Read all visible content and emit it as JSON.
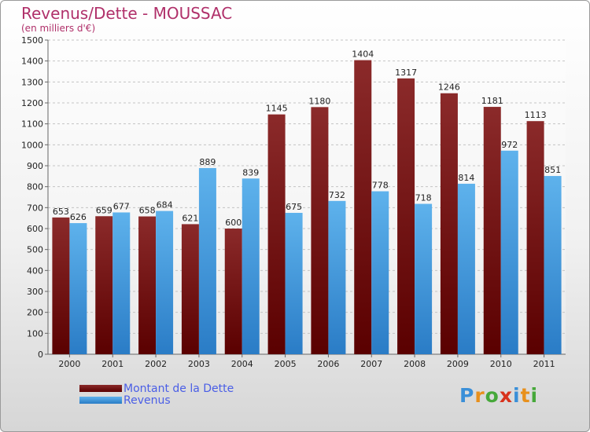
{
  "title": "Revenus/Dette - MOUSSAC",
  "subtitle": "(en milliers d'€)",
  "logo": {
    "text": "Proxiti",
    "letter_colors": [
      "#3a8fd8",
      "#e8901c",
      "#46a83a",
      "#d8321c",
      "#3a8fd8",
      "#e8901c",
      "#46a83a"
    ]
  },
  "chart_data": {
    "type": "bar",
    "categories": [
      "2000",
      "2001",
      "2002",
      "2003",
      "2004",
      "2005",
      "2006",
      "2007",
      "2008",
      "2009",
      "2010",
      "2011"
    ],
    "series": [
      {
        "name": "Montant de la Dette",
        "values": [
          653,
          659,
          658,
          621,
          600,
          1145,
          1180,
          1404,
          1317,
          1246,
          1181,
          1113
        ],
        "color_dark": "#5a0000",
        "color_light": "#8b2a2a"
      },
      {
        "name": "Revenus",
        "values": [
          626,
          677,
          684,
          889,
          839,
          675,
          732,
          778,
          718,
          814,
          972,
          851
        ],
        "color_dark": "#2a7cc6",
        "color_light": "#5eb2ec"
      }
    ],
    "ylim": [
      0,
      1500
    ],
    "yticks": [
      0,
      100,
      200,
      300,
      400,
      500,
      600,
      700,
      800,
      900,
      1000,
      1100,
      1200,
      1300,
      1400,
      1500
    ],
    "grid": true,
    "legend_position": "bottom-left"
  }
}
